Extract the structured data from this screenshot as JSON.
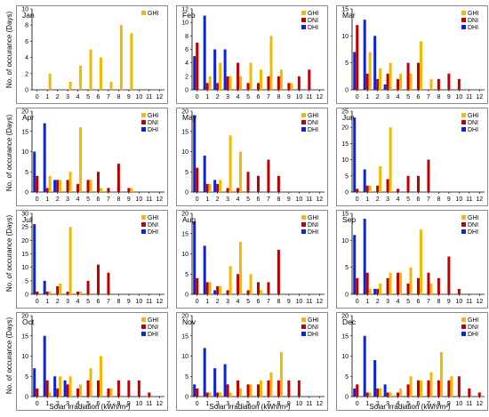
{
  "figure": {
    "ylabel": "No. of occurance (Days)",
    "xlabel": "Solar irradiation (kWh/m²)"
  },
  "colors": {
    "GHI": "#f5b800",
    "DNI": "#c00000",
    "DHI": "#0a23e0"
  },
  "chart_data": [
    {
      "type": "bar",
      "title": "Jan",
      "categories": [
        "0",
        "1",
        "2",
        "3",
        "4",
        "5",
        "6",
        "7",
        "8",
        "9",
        "10",
        "11",
        "12"
      ],
      "ylim": [
        0,
        10
      ],
      "yticks": [
        0,
        2,
        4,
        6,
        8,
        10
      ],
      "legend": [
        "GHI"
      ],
      "series": [
        {
          "name": "GHI",
          "values": [
            0,
            2,
            0,
            1,
            3,
            5,
            4,
            1,
            8,
            7,
            0,
            0,
            0
          ]
        }
      ]
    },
    {
      "type": "bar",
      "title": "Feb",
      "categories": [
        "0",
        "1",
        "2",
        "3",
        "4",
        "5",
        "6",
        "7",
        "8",
        "9",
        "10",
        "11",
        "12"
      ],
      "ylim": [
        0,
        12
      ],
      "yticks": [
        0,
        2,
        4,
        6,
        8,
        10,
        12
      ],
      "legend": [
        "GHI",
        "DNI",
        "DHI"
      ],
      "series": [
        {
          "name": "GHI",
          "values": [
            0,
            2,
            4,
            2,
            2,
            4,
            3,
            8,
            3,
            1,
            0,
            0,
            0
          ]
        },
        {
          "name": "DNI",
          "values": [
            7,
            1,
            1,
            2,
            4,
            1,
            1,
            2,
            2,
            1,
            2,
            3,
            0
          ]
        },
        {
          "name": "DHI",
          "values": [
            5,
            11,
            6,
            6,
            0,
            0,
            0,
            0,
            0,
            0,
            0,
            0,
            0
          ]
        }
      ]
    },
    {
      "type": "bar",
      "title": "Mar",
      "categories": [
        "0",
        "1",
        "2",
        "3",
        "4",
        "5",
        "6",
        "7",
        "8",
        "9",
        "10",
        "11",
        "12"
      ],
      "ylim": [
        0,
        15
      ],
      "yticks": [
        0,
        5,
        10,
        15
      ],
      "legend": [
        "GHI",
        "DNI",
        "DHI"
      ],
      "series": [
        {
          "name": "GHI",
          "values": [
            0,
            7,
            4,
            5,
            3,
            3,
            9,
            2,
            0,
            0,
            0,
            0,
            0
          ]
        },
        {
          "name": "DNI",
          "values": [
            12,
            3,
            2,
            3,
            2,
            5,
            5,
            0,
            2,
            3,
            2,
            0,
            0
          ]
        },
        {
          "name": "DHI",
          "values": [
            7,
            13,
            10,
            1,
            0,
            0,
            0,
            0,
            0,
            0,
            0,
            0,
            0
          ]
        }
      ]
    },
    {
      "type": "bar",
      "title": "Apr",
      "categories": [
        "0",
        "1",
        "2",
        "3",
        "4",
        "5",
        "6",
        "7",
        "8",
        "9",
        "10",
        "11",
        "12"
      ],
      "ylim": [
        0,
        20
      ],
      "yticks": [
        0,
        5,
        10,
        15,
        20
      ],
      "legend": [
        "GHI",
        "DNI",
        "DHI"
      ],
      "series": [
        {
          "name": "GHI",
          "values": [
            0,
            4,
            3,
            5,
            16,
            3,
            1,
            0,
            0,
            1,
            0,
            0,
            0
          ]
        },
        {
          "name": "DNI",
          "values": [
            4,
            1,
            3,
            3,
            2,
            3,
            5,
            1,
            7,
            1,
            0,
            0,
            0
          ]
        },
        {
          "name": "DHI",
          "values": [
            10,
            17,
            3,
            0,
            0,
            0,
            0,
            0,
            0,
            0,
            0,
            0,
            0
          ]
        }
      ]
    },
    {
      "type": "bar",
      "title": "May",
      "categories": [
        "0",
        "1",
        "2",
        "3",
        "4",
        "5",
        "6",
        "7",
        "8",
        "9",
        "10",
        "11",
        "12"
      ],
      "ylim": [
        0,
        20
      ],
      "yticks": [
        0,
        5,
        10,
        15,
        20
      ],
      "legend": [
        "GHI",
        "DNI",
        "DHI"
      ],
      "series": [
        {
          "name": "GHI",
          "values": [
            0,
            2,
            3,
            14,
            10,
            0,
            0,
            0,
            0,
            0,
            0,
            0,
            0
          ]
        },
        {
          "name": "DNI",
          "values": [
            6,
            2,
            2,
            1,
            1,
            5,
            4,
            8,
            4,
            0,
            0,
            0,
            0
          ]
        },
        {
          "name": "DHI",
          "values": [
            19,
            9,
            3,
            0,
            0,
            0,
            0,
            0,
            0,
            0,
            0,
            0,
            0
          ]
        }
      ]
    },
    {
      "type": "bar",
      "title": "Jun",
      "categories": [
        "0",
        "1",
        "2",
        "3",
        "4",
        "5",
        "6",
        "7",
        "8",
        "9",
        "10",
        "11",
        "12"
      ],
      "ylim": [
        0,
        25
      ],
      "yticks": [
        0,
        5,
        10,
        15,
        20,
        25
      ],
      "legend": [
        "GHI",
        "DNI",
        "DHI"
      ],
      "series": [
        {
          "name": "GHI",
          "values": [
            0,
            2,
            8,
            20,
            0,
            0,
            0,
            0,
            0,
            0,
            0,
            0,
            0
          ]
        },
        {
          "name": "DNI",
          "values": [
            1,
            2,
            2,
            4,
            1,
            5,
            5,
            10,
            0,
            0,
            0,
            0,
            0
          ]
        },
        {
          "name": "DHI",
          "values": [
            23,
            7,
            0,
            0,
            0,
            0,
            0,
            0,
            0,
            0,
            0,
            0,
            0
          ]
        }
      ]
    },
    {
      "type": "bar",
      "title": "Jul",
      "categories": [
        "0",
        "1",
        "2",
        "3",
        "4",
        "5",
        "6",
        "7",
        "8",
        "9",
        "10",
        "11",
        "12"
      ],
      "ylim": [
        0,
        30
      ],
      "yticks": [
        0,
        5,
        10,
        15,
        20,
        25,
        30
      ],
      "legend": [
        "GHI",
        "DNI",
        "DHI"
      ],
      "series": [
        {
          "name": "GHI",
          "values": [
            0,
            1,
            4,
            25,
            1,
            0,
            0,
            0,
            0,
            0,
            0,
            0,
            0
          ]
        },
        {
          "name": "DNI",
          "values": [
            1,
            1,
            3,
            1,
            1,
            5,
            11,
            8,
            0,
            0,
            0,
            0,
            0
          ]
        },
        {
          "name": "DHI",
          "values": [
            26,
            5,
            0,
            0,
            0,
            0,
            0,
            0,
            0,
            0,
            0,
            0,
            0
          ]
        }
      ]
    },
    {
      "type": "bar",
      "title": "Aug",
      "categories": [
        "0",
        "1",
        "2",
        "3",
        "4",
        "5",
        "6",
        "7",
        "8",
        "9",
        "10",
        "11",
        "12"
      ],
      "ylim": [
        0,
        20
      ],
      "yticks": [
        0,
        5,
        10,
        15,
        20
      ],
      "legend": [
        "GHI",
        "DNI",
        "DHI"
      ],
      "series": [
        {
          "name": "GHI",
          "values": [
            0,
            3,
            2,
            7,
            13,
            5,
            1,
            0,
            0,
            0,
            0,
            0,
            0
          ]
        },
        {
          "name": "DNI",
          "values": [
            4,
            3,
            2,
            1,
            5,
            1,
            3,
            3,
            11,
            0,
            0,
            0,
            0
          ]
        },
        {
          "name": "DHI",
          "values": [
            18,
            12,
            1,
            0,
            0,
            0,
            0,
            0,
            0,
            0,
            0,
            0,
            0
          ]
        }
      ]
    },
    {
      "type": "bar",
      "title": "Sep",
      "categories": [
        "0",
        "1",
        "2",
        "3",
        "4",
        "5",
        "6",
        "7",
        "8",
        "9",
        "10",
        "11",
        "12"
      ],
      "ylim": [
        0,
        15
      ],
      "yticks": [
        0,
        5,
        10,
        15
      ],
      "legend": [
        "GHI",
        "DNI",
        "DHI"
      ],
      "series": [
        {
          "name": "GHI",
          "values": [
            0,
            1,
            2,
            4,
            4,
            5,
            12,
            2,
            0,
            0,
            0,
            0,
            0
          ]
        },
        {
          "name": "DNI",
          "values": [
            3,
            4,
            1,
            3,
            4,
            2,
            3,
            4,
            3,
            7,
            1,
            0,
            0
          ]
        },
        {
          "name": "DHI",
          "values": [
            11,
            14,
            1,
            0,
            0,
            0,
            0,
            0,
            0,
            0,
            0,
            0,
            0
          ]
        }
      ]
    },
    {
      "type": "bar",
      "title": "Oct",
      "categories": [
        "0",
        "1",
        "2",
        "3",
        "4",
        "5",
        "6",
        "7",
        "8",
        "9",
        "10",
        "11",
        "12"
      ],
      "ylim": [
        0,
        20
      ],
      "yticks": [
        0,
        5,
        10,
        15,
        20
      ],
      "legend": [
        "GHI",
        "DNI",
        "DHI"
      ],
      "series": [
        {
          "name": "GHI",
          "values": [
            0,
            1,
            5,
            5,
            3,
            7,
            10,
            2,
            0,
            0,
            0,
            0,
            0
          ]
        },
        {
          "name": "DNI",
          "values": [
            2,
            4,
            2,
            3,
            2,
            4,
            4,
            2,
            4,
            4,
            4,
            1,
            0
          ]
        },
        {
          "name": "DHI",
          "values": [
            7,
            15,
            5,
            4,
            0,
            0,
            0,
            0,
            0,
            0,
            0,
            0,
            0
          ]
        }
      ]
    },
    {
      "type": "bar",
      "title": "Nov",
      "categories": [
        "0",
        "1",
        "2",
        "3",
        "4",
        "5",
        "6",
        "7",
        "8",
        "9",
        "10",
        "11",
        "12"
      ],
      "ylim": [
        0,
        20
      ],
      "yticks": [
        0,
        5,
        10,
        15,
        20
      ],
      "legend": [
        "GHI",
        "DNI",
        "DHI"
      ],
      "series": [
        {
          "name": "GHI",
          "values": [
            0,
            1,
            1,
            1,
            2,
            3,
            4,
            6,
            11,
            0,
            0,
            0,
            0
          ]
        },
        {
          "name": "DNI",
          "values": [
            2,
            1,
            1,
            3,
            4,
            3,
            3,
            4,
            4,
            4,
            4,
            0,
            0
          ]
        },
        {
          "name": "DHI",
          "values": [
            3,
            12,
            7,
            8,
            0,
            0,
            0,
            0,
            0,
            0,
            0,
            0,
            0
          ]
        }
      ]
    },
    {
      "type": "bar",
      "title": "Dec",
      "categories": [
        "0",
        "1",
        "2",
        "3",
        "4",
        "5",
        "6",
        "7",
        "8",
        "9",
        "10",
        "11",
        "12"
      ],
      "ylim": [
        0,
        20
      ],
      "yticks": [
        0,
        5,
        10,
        15,
        20
      ],
      "legend": [
        "GHI",
        "DNI",
        "DHI"
      ],
      "series": [
        {
          "name": "GHI",
          "values": [
            0,
            1,
            2,
            1,
            2,
            5,
            4,
            6,
            11,
            5,
            0,
            0,
            0
          ]
        },
        {
          "name": "DNI",
          "values": [
            3,
            1,
            2,
            1,
            1,
            3,
            4,
            4,
            4,
            4,
            5,
            2,
            1
          ]
        },
        {
          "name": "DHI",
          "values": [
            2,
            15,
            9,
            3,
            0,
            0,
            0,
            0,
            0,
            0,
            0,
            0,
            0
          ]
        }
      ]
    }
  ]
}
